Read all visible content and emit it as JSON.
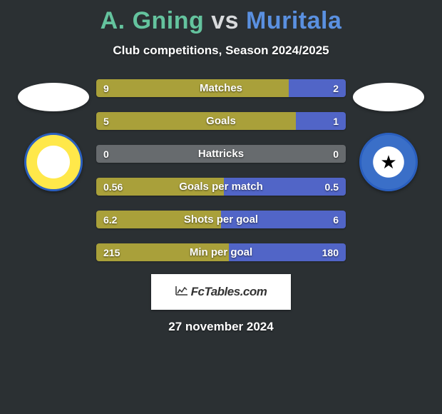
{
  "title_parts": {
    "p1": "A. Gning",
    "vs": "vs",
    "p2": "Muritala"
  },
  "title_colors": {
    "p1": "#64c39e",
    "vs": "#d8dadc",
    "p2": "#5a90e0"
  },
  "subtitle": "Club competitions, Season 2024/2025",
  "bar_colors": {
    "left_fill": "#a9a03a",
    "right_fill": "#5165c7",
    "neutral_bg": "#676b6e"
  },
  "bars": [
    {
      "label": "Matches",
      "left": "9",
      "right": "2",
      "left_pct": 77,
      "right_pct": 23,
      "neutral": false
    },
    {
      "label": "Goals",
      "left": "5",
      "right": "1",
      "left_pct": 80,
      "right_pct": 20,
      "neutral": false
    },
    {
      "label": "Hattricks",
      "left": "0",
      "right": "0",
      "left_pct": 0,
      "right_pct": 0,
      "neutral": true
    },
    {
      "label": "Goals per match",
      "left": "0.56",
      "right": "0.5",
      "left_pct": 51,
      "right_pct": 49,
      "neutral": false
    },
    {
      "label": "Shots per goal",
      "left": "6.2",
      "right": "6",
      "left_pct": 50,
      "right_pct": 50,
      "neutral": false
    },
    {
      "label": "Min per goal",
      "left": "215",
      "right": "180",
      "left_pct": 53,
      "right_pct": 47,
      "neutral": false
    }
  ],
  "footer_brand": "FcTables.com",
  "date": "27 november 2024",
  "background_color": "#2b3033"
}
